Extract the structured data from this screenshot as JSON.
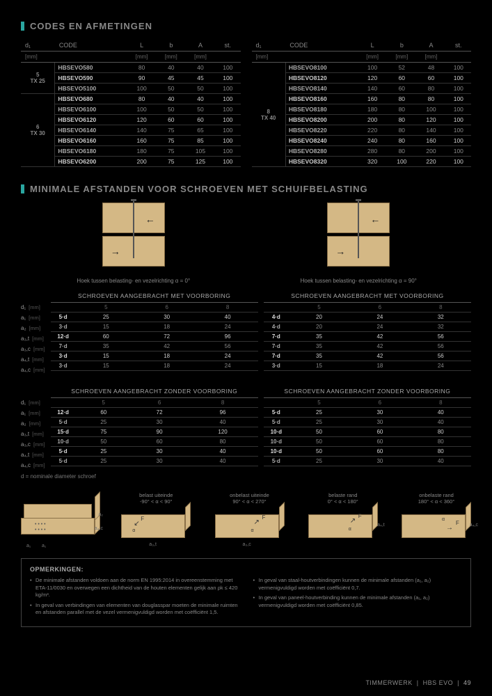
{
  "section1_title": "CODES EN AFMETINGEN",
  "section2_title": "MINIMALE AFSTANDEN VOOR SCHROEVEN MET SCHUIFBELASTING",
  "codes_headers": [
    "d₁",
    "CODE",
    "L",
    "b",
    "A",
    "st."
  ],
  "codes_units": [
    "[mm]",
    "",
    "[mm]",
    "[mm]",
    "[mm]",
    ""
  ],
  "codes_left": {
    "groups": [
      {
        "label": "5\nTX 25",
        "rows": [
          {
            "code": "HBSEVO580",
            "L": "80",
            "b": "40",
            "A": "40",
            "st": "100",
            "hl": false
          },
          {
            "code": "HBSEVO590",
            "L": "90",
            "b": "45",
            "A": "45",
            "st": "100",
            "hl": true
          },
          {
            "code": "HBSEVO5100",
            "L": "100",
            "b": "50",
            "A": "50",
            "st": "100",
            "hl": false
          }
        ]
      },
      {
        "label": "6\nTX 30",
        "rows": [
          {
            "code": "HBSEVO680",
            "L": "80",
            "b": "40",
            "A": "40",
            "st": "100",
            "hl": true
          },
          {
            "code": "HBSEVO6100",
            "L": "100",
            "b": "50",
            "A": "50",
            "st": "100",
            "hl": false
          },
          {
            "code": "HBSEVO6120",
            "L": "120",
            "b": "60",
            "A": "60",
            "st": "100",
            "hl": true
          },
          {
            "code": "HBSEVO6140",
            "L": "140",
            "b": "75",
            "A": "65",
            "st": "100",
            "hl": false
          },
          {
            "code": "HBSEVO6160",
            "L": "160",
            "b": "75",
            "A": "85",
            "st": "100",
            "hl": true
          },
          {
            "code": "HBSEVO6180",
            "L": "180",
            "b": "75",
            "A": "105",
            "st": "100",
            "hl": false
          },
          {
            "code": "HBSEVO6200",
            "L": "200",
            "b": "75",
            "A": "125",
            "st": "100",
            "hl": true
          }
        ]
      }
    ]
  },
  "codes_right": {
    "groups": [
      {
        "label": "8\nTX 40",
        "rows": [
          {
            "code": "HBSEVO8100",
            "L": "100",
            "b": "52",
            "A": "48",
            "st": "100",
            "hl": false
          },
          {
            "code": "HBSEVO8120",
            "L": "120",
            "b": "60",
            "A": "60",
            "st": "100",
            "hl": true
          },
          {
            "code": "HBSEVO8140",
            "L": "140",
            "b": "60",
            "A": "80",
            "st": "100",
            "hl": false
          },
          {
            "code": "HBSEVO8160",
            "L": "160",
            "b": "80",
            "A": "80",
            "st": "100",
            "hl": true
          },
          {
            "code": "HBSEVO8180",
            "L": "180",
            "b": "80",
            "A": "100",
            "st": "100",
            "hl": false
          },
          {
            "code": "HBSEVO8200",
            "L": "200",
            "b": "80",
            "A": "120",
            "st": "100",
            "hl": true
          },
          {
            "code": "HBSEVO8220",
            "L": "220",
            "b": "80",
            "A": "140",
            "st": "100",
            "hl": false
          },
          {
            "code": "HBSEVO8240",
            "L": "240",
            "b": "80",
            "A": "160",
            "st": "100",
            "hl": true
          },
          {
            "code": "HBSEVO8280",
            "L": "280",
            "b": "80",
            "A": "200",
            "st": "100",
            "hl": false
          },
          {
            "code": "HBSEVO8320",
            "L": "320",
            "b": "100",
            "A": "220",
            "st": "100",
            "hl": true
          }
        ]
      }
    ]
  },
  "caption_left": "Hoek tussen belasting- en vezelrichting α = 0°",
  "caption_right": "Hoek tussen belasting- en vezelrichting α = 90°",
  "dist_header_met": "SCHROEVEN AANGEBRACHT MET VOORBORING",
  "dist_header_zonder": "SCHROEVEN AANGEBRACHT ZONDER VOORBORING",
  "dist_cols": [
    "5",
    "6",
    "8"
  ],
  "dist_row_labels": [
    {
      "k": "d₁",
      "u": "[mm]"
    },
    {
      "k": "a₁",
      "u": "[mm]"
    },
    {
      "k": "a₂",
      "u": "[mm]"
    },
    {
      "k": "a₃,t",
      "u": "[mm]"
    },
    {
      "k": "a₃,c",
      "u": "[mm]"
    },
    {
      "k": "a₄,t",
      "u": "[mm]"
    },
    {
      "k": "a₄,c",
      "u": "[mm]"
    }
  ],
  "dist_met_left": [
    {
      "f": "5·d",
      "v": [
        "25",
        "30",
        "40"
      ],
      "hl": true
    },
    {
      "f": "3·d",
      "v": [
        "15",
        "18",
        "24"
      ],
      "hl": false
    },
    {
      "f": "12·d",
      "v": [
        "60",
        "72",
        "96"
      ],
      "hl": true
    },
    {
      "f": "7·d",
      "v": [
        "35",
        "42",
        "56"
      ],
      "hl": false
    },
    {
      "f": "3·d",
      "v": [
        "15",
        "18",
        "24"
      ],
      "hl": true
    },
    {
      "f": "3·d",
      "v": [
        "15",
        "18",
        "24"
      ],
      "hl": false
    }
  ],
  "dist_met_right": [
    {
      "f": "4·d",
      "v": [
        "20",
        "24",
        "32"
      ],
      "hl": true
    },
    {
      "f": "4·d",
      "v": [
        "20",
        "24",
        "32"
      ],
      "hl": false
    },
    {
      "f": "7·d",
      "v": [
        "35",
        "42",
        "56"
      ],
      "hl": true
    },
    {
      "f": "7·d",
      "v": [
        "35",
        "42",
        "56"
      ],
      "hl": false
    },
    {
      "f": "7·d",
      "v": [
        "35",
        "42",
        "56"
      ],
      "hl": true
    },
    {
      "f": "3·d",
      "v": [
        "15",
        "18",
        "24"
      ],
      "hl": false
    }
  ],
  "dist_zonder_left": [
    {
      "f": "12·d",
      "v": [
        "60",
        "72",
        "96"
      ],
      "hl": true
    },
    {
      "f": "5·d",
      "v": [
        "25",
        "30",
        "40"
      ],
      "hl": false
    },
    {
      "f": "15·d",
      "v": [
        "75",
        "90",
        "120"
      ],
      "hl": true
    },
    {
      "f": "10·d",
      "v": [
        "50",
        "60",
        "80"
      ],
      "hl": false
    },
    {
      "f": "5·d",
      "v": [
        "25",
        "30",
        "40"
      ],
      "hl": true
    },
    {
      "f": "5·d",
      "v": [
        "25",
        "30",
        "40"
      ],
      "hl": false
    }
  ],
  "dist_zonder_right": [
    {
      "f": "5·d",
      "v": [
        "25",
        "30",
        "40"
      ],
      "hl": true
    },
    {
      "f": "5·d",
      "v": [
        "25",
        "30",
        "40"
      ],
      "hl": false
    },
    {
      "f": "10·d",
      "v": [
        "50",
        "60",
        "80"
      ],
      "hl": true
    },
    {
      "f": "10·d",
      "v": [
        "50",
        "60",
        "80"
      ],
      "hl": false
    },
    {
      "f": "10·d",
      "v": [
        "50",
        "60",
        "80"
      ],
      "hl": true
    },
    {
      "f": "5·d",
      "v": [
        "25",
        "30",
        "40"
      ],
      "hl": false
    }
  ],
  "note_d": "d = nominale diameter schroef",
  "iso_labels": [
    {
      "top": "",
      "sub": ""
    },
    {
      "top": "belast uiteinde",
      "sub": "-90° < α < 90°"
    },
    {
      "top": "onbelast uiteinde",
      "sub": "90° < α < 270°"
    },
    {
      "top": "belaste rand",
      "sub": "0° < α < 180°"
    },
    {
      "top": "onbelaste rand",
      "sub": "180° < α < 360°"
    }
  ],
  "notes_title": "OPMERKINGEN:",
  "notes_left": [
    "De minimale afstanden voldoen aan de norm EN 1995:2014 in overeenstemming met ETA-11/0030 en overwegen een dichtheid van de houten elementen gelijk aan ρk ≤ 420 kg/m³.",
    "In geval van verbindingen van elementen van douglasspar moeten de minimale ruimten en afstanden parallel met de vezel vermenigvuldigd worden met coëfficiënt 1,5."
  ],
  "notes_right": [
    "In geval van staal-houtverbindingen kunnen de minimale afstanden (a₁, a₂) vermenigvuldigd worden met coëfficiënt 0,7.",
    "In geval van paneel-houtverbinding kunnen de minimale afstanden (a₁, a₂) vermenigvuldigd worden met coëfficiënt 0,85."
  ],
  "footer_left": "TIMMERWERK",
  "footer_mid": "HBS EVO",
  "footer_page": "49"
}
